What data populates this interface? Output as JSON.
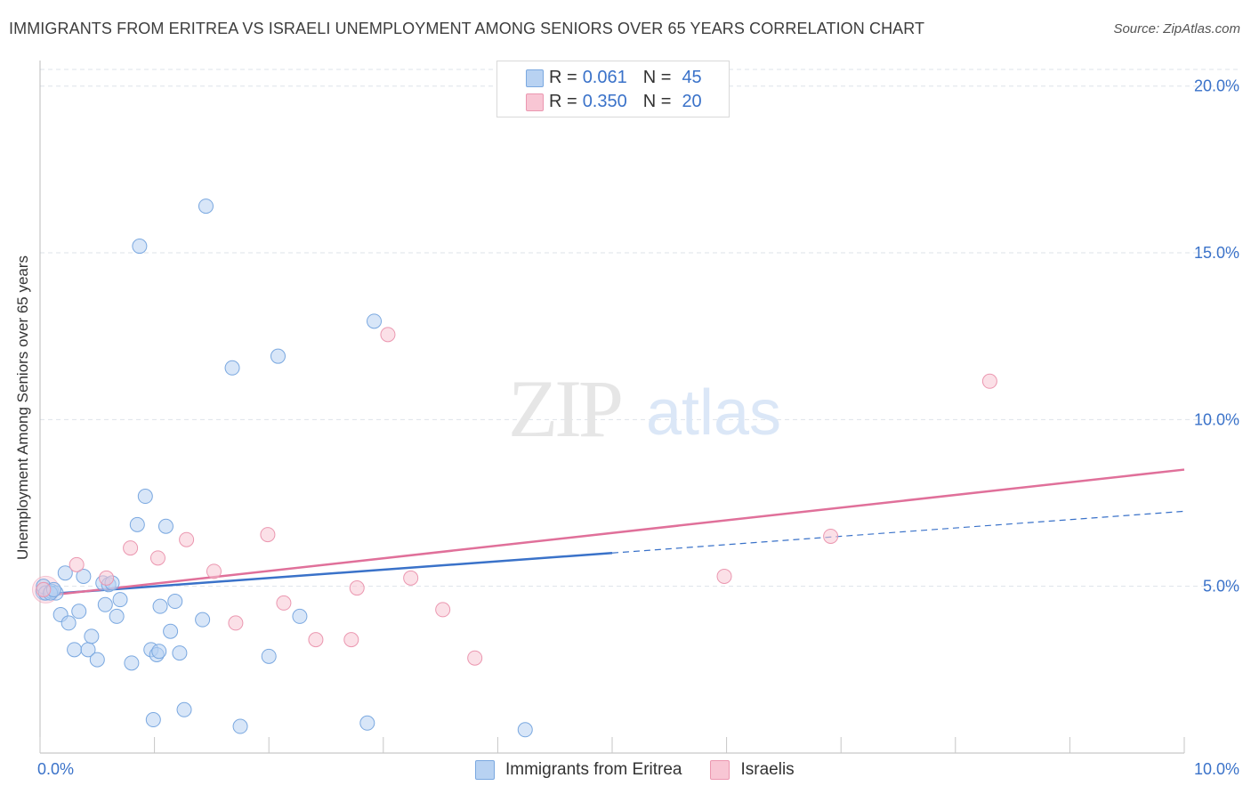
{
  "header": {
    "title": "IMMIGRANTS FROM ERITREA VS ISRAELI UNEMPLOYMENT AMONG SENIORS OVER 65 YEARS CORRELATION CHART",
    "source": "Source: ZipAtlas.com"
  },
  "watermark": {
    "zip": "ZIP",
    "atlas": "atlas"
  },
  "legend_top": {
    "rows": [
      {
        "r_label": "R = ",
        "r_value": "0.061",
        "n_label": "N = ",
        "n_value": "45"
      },
      {
        "r_label": "R = ",
        "r_value": "0.350",
        "n_label": "N = ",
        "n_value": "20"
      }
    ]
  },
  "legend_bottom": {
    "series1": "Immigrants from Eritrea",
    "series2": "Israelis"
  },
  "colors": {
    "series1_fill": "#b8d2f2",
    "series1_stroke": "#7aa8e0",
    "series1_line": "#3a72c9",
    "series2_fill": "#f8c6d4",
    "series2_stroke": "#eb97b0",
    "series2_line": "#e0709a",
    "axis_text": "#3a72c9",
    "grid": "#dde3ea"
  },
  "chart_data": {
    "type": "scatter",
    "title": "IMMIGRANTS FROM ERITREA VS ISRAELI UNEMPLOYMENT AMONG SENIORS OVER 65 YEARS CORRELATION CHART",
    "xlabel": "",
    "ylabel": "Unemployment Among Seniors over 65 years",
    "xlim": [
      0,
      10
    ],
    "ylim": [
      0,
      20.5
    ],
    "x_tick_labels": [
      "0.0%",
      "10.0%"
    ],
    "y_ticks": [
      5,
      10,
      15,
      20
    ],
    "y_tick_labels": [
      "5.0%",
      "10.0%",
      "15.0%",
      "20.0%"
    ],
    "grid": true,
    "legend": "top-center",
    "series": [
      {
        "name": "Immigrants from Eritrea",
        "points": [
          [
            0.03,
            5.0
          ],
          [
            0.05,
            4.8
          ],
          [
            0.1,
            4.85
          ],
          [
            0.14,
            4.8
          ],
          [
            0.18,
            4.15
          ],
          [
            0.22,
            5.4
          ],
          [
            0.25,
            3.9
          ],
          [
            0.3,
            3.1
          ],
          [
            0.34,
            4.25
          ],
          [
            0.38,
            5.3
          ],
          [
            0.42,
            3.1
          ],
          [
            0.45,
            3.5
          ],
          [
            0.5,
            2.8
          ],
          [
            0.55,
            5.1
          ],
          [
            0.57,
            4.45
          ],
          [
            0.6,
            5.05
          ],
          [
            0.63,
            5.1
          ],
          [
            0.67,
            4.1
          ],
          [
            0.7,
            4.6
          ],
          [
            0.8,
            2.7
          ],
          [
            0.85,
            6.85
          ],
          [
            0.87,
            15.2
          ],
          [
            0.92,
            7.7
          ],
          [
            0.97,
            3.1
          ],
          [
            0.99,
            1.0
          ],
          [
            1.02,
            2.95
          ],
          [
            1.05,
            4.4
          ],
          [
            1.04,
            3.05
          ],
          [
            1.1,
            6.8
          ],
          [
            1.14,
            3.65
          ],
          [
            1.18,
            4.55
          ],
          [
            1.22,
            3.0
          ],
          [
            1.26,
            1.3
          ],
          [
            1.42,
            4.0
          ],
          [
            1.45,
            16.4
          ],
          [
            1.68,
            11.55
          ],
          [
            1.75,
            0.8
          ],
          [
            2.0,
            2.9
          ],
          [
            2.08,
            11.9
          ],
          [
            2.27,
            4.1
          ],
          [
            2.86,
            0.9
          ],
          [
            2.92,
            12.95
          ],
          [
            4.24,
            0.7
          ],
          [
            0.09,
            4.8
          ],
          [
            0.12,
            4.9
          ]
        ],
        "trend": {
          "x": [
            0,
            5.0
          ],
          "y": [
            4.75,
            6.0
          ],
          "dashed_extension": {
            "x": [
              5.0,
              10
            ],
            "y": [
              6.0,
              7.25
            ]
          }
        }
      },
      {
        "name": "Israelis",
        "points": [
          [
            0.03,
            4.9
          ],
          [
            0.32,
            5.65
          ],
          [
            0.58,
            5.25
          ],
          [
            0.79,
            6.15
          ],
          [
            1.03,
            5.85
          ],
          [
            1.28,
            6.4
          ],
          [
            1.52,
            5.45
          ],
          [
            1.71,
            3.9
          ],
          [
            1.99,
            6.55
          ],
          [
            2.13,
            4.5
          ],
          [
            2.41,
            3.4
          ],
          [
            2.72,
            3.4
          ],
          [
            2.77,
            4.95
          ],
          [
            3.24,
            5.25
          ],
          [
            3.52,
            4.3
          ],
          [
            3.8,
            2.85
          ],
          [
            3.04,
            12.55
          ],
          [
            5.98,
            5.3
          ],
          [
            6.91,
            6.5
          ],
          [
            8.3,
            11.15
          ]
        ],
        "trend": {
          "x": [
            0,
            10
          ],
          "y": [
            4.7,
            8.5
          ]
        }
      }
    ]
  }
}
